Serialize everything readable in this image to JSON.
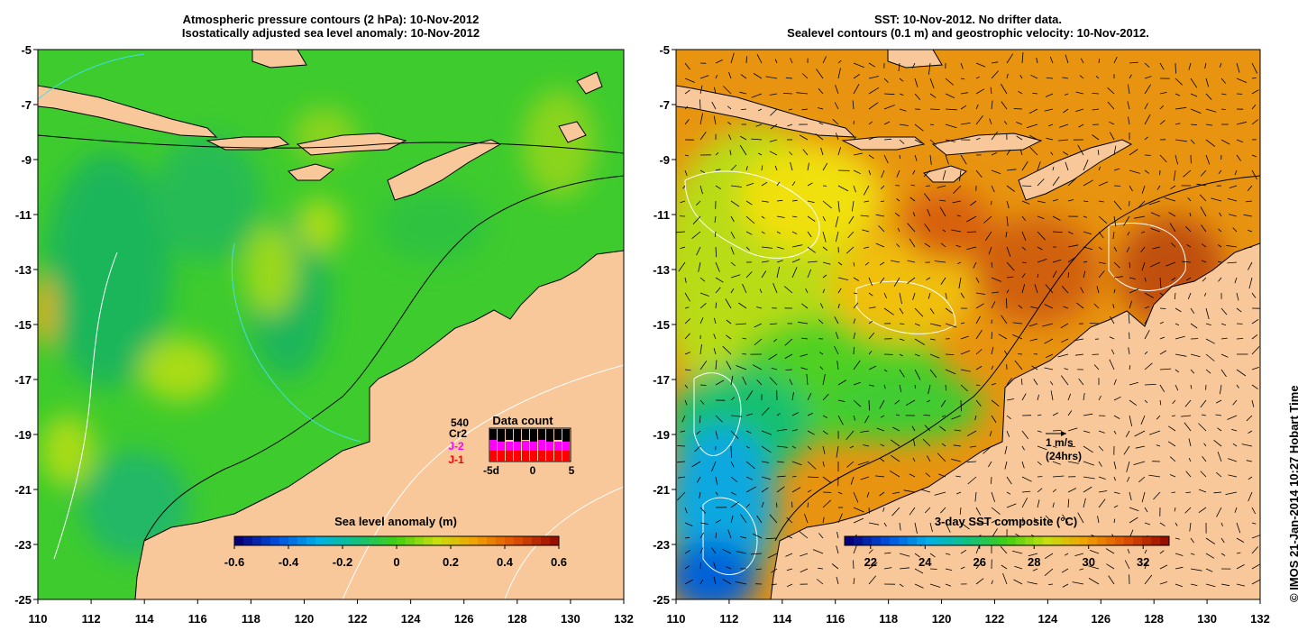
{
  "left_panel": {
    "title_line1": "Atmospheric pressure contours (2 hPa): 10-Nov-2012",
    "title_line2": "Isostatically adjusted sea level anomaly: 10-Nov-2012",
    "x_ticks": [
      "110",
      "112",
      "114",
      "116",
      "118",
      "120",
      "122",
      "124",
      "126",
      "128",
      "130",
      "132"
    ],
    "y_ticks": [
      "-5",
      "-7",
      "-9",
      "-11",
      "-13",
      "-15",
      "-17",
      "-19",
      "-21",
      "-23",
      "-25"
    ],
    "colorbar": {
      "title": "Sea level anomaly (m)",
      "ticks": [
        "-0.6",
        "-0.4",
        "-0.2",
        "0",
        "0.2",
        "0.4",
        "0.6"
      ],
      "colors": [
        "#06007a",
        "#0050e0",
        "#00b0e8",
        "#10c080",
        "#40d010",
        "#c8e010",
        "#f0a000",
        "#e05000",
        "#9a0e00"
      ]
    },
    "data_count": {
      "title": "Data count",
      "sat_s3": "540",
      "sat_cr2": "Cr2",
      "sat_j2": "J-2",
      "sat_j1": "J-1",
      "axis_labels": [
        "-5d",
        "0",
        "5"
      ],
      "colors": {
        "j2": "#ff00ff",
        "j1": "#ff0000",
        "s3": "#000000"
      }
    }
  },
  "right_panel": {
    "title_line1": "SST: 10-Nov-2012. No drifter data.",
    "title_line2": "Sealevel contours (0.1 m) and geostrophic velocity: 10-Nov-2012.",
    "x_ticks": [
      "110",
      "112",
      "114",
      "116",
      "118",
      "120",
      "122",
      "124",
      "126",
      "128",
      "130",
      "132"
    ],
    "y_ticks": [
      "-5",
      "-7",
      "-9",
      "-11",
      "-13",
      "-15",
      "-17",
      "-19",
      "-21",
      "-23",
      "-25"
    ],
    "colorbar": {
      "title": "3-day SST composite (°C)",
      "ticks": [
        "22",
        "24",
        "26",
        "28",
        "30",
        "32"
      ],
      "colors": [
        "#06007a",
        "#0050e0",
        "#00b0e8",
        "#10c080",
        "#40d010",
        "#c8e010",
        "#f0a000",
        "#e05000",
        "#9a0e00"
      ]
    },
    "velocity_key": {
      "label": "1 m/s",
      "sublabel": "(24hrs)"
    }
  },
  "land_color": "#f8c89a",
  "credit": "© IMOS 21-Jan-2014 10:27 Hobart Time"
}
